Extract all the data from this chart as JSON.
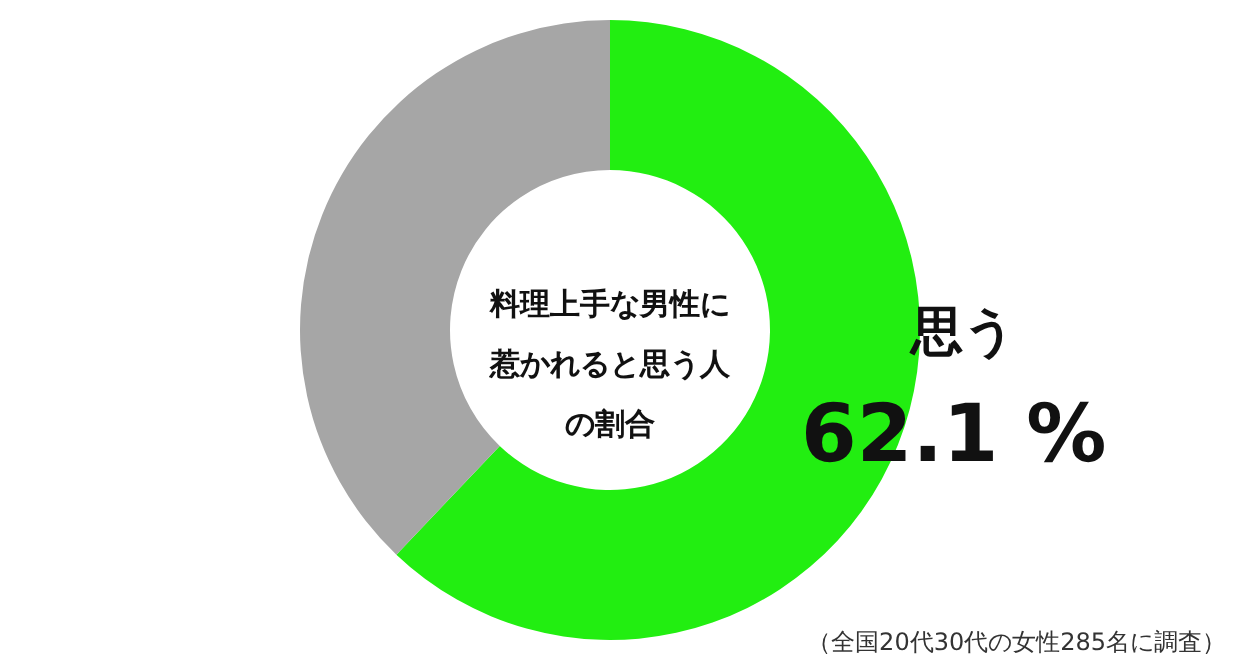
{
  "chart_data": {
    "type": "donut",
    "title": "料理上手な男性に惹かれると思う人の割合",
    "categories": [
      "思う",
      null
    ],
    "values": [
      62.1,
      37.9
    ],
    "colors": [
      "#22ee11",
      "#a6a6a6"
    ],
    "value_labels": [
      "62.1 %",
      null
    ],
    "annotations": [
      "（全国20代30代の女性285名に調査）"
    ],
    "legend": false
  }
}
